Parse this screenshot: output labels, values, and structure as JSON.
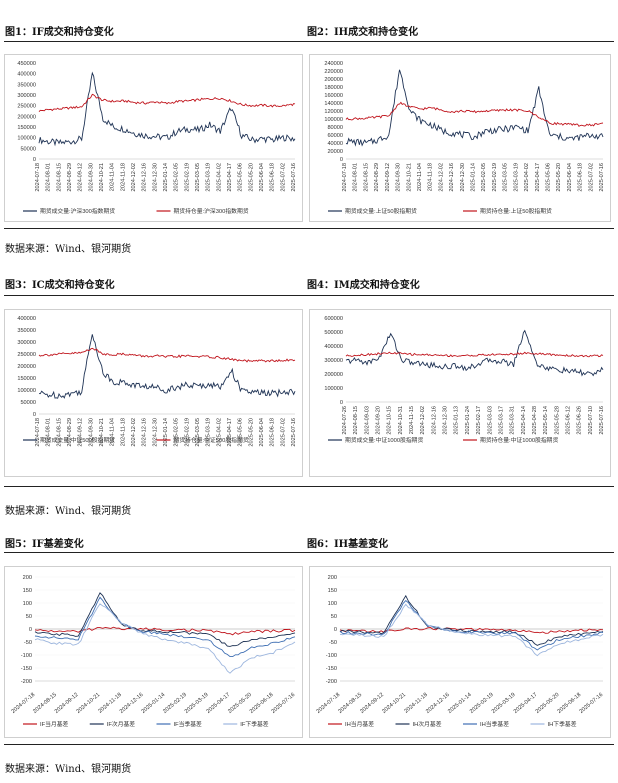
{
  "sources": [
    "数据来源：Wind、银河期货",
    "数据来源：Wind、银河期货",
    "数据来源：Wind、银河期货"
  ],
  "colors": {
    "navy": "#1f3355",
    "red": "#c0141c",
    "blue": "#3f6fb3",
    "lightblue": "#9db6de"
  },
  "chart_data": [
    {
      "id": "c1",
      "title": "图1：IF成交和持仓变化",
      "type": "line",
      "ylim": [
        0,
        450000
      ],
      "yticks": [
        0,
        50000,
        100000,
        150000,
        200000,
        250000,
        300000,
        350000,
        400000,
        450000
      ],
      "x": [
        "2024-07-18",
        "2024-08-01",
        "2024-08-15",
        "2024-08-29",
        "2024-09-12",
        "2024-09-30",
        "2024-10-21",
        "2024-11-04",
        "2024-11-18",
        "2024-12-02",
        "2024-12-16",
        "2024-12-30",
        "2025-01-14",
        "2025-02-05",
        "2025-02-19",
        "2025-03-05",
        "2025-03-19",
        "2025-04-02",
        "2025-04-17",
        "2025-05-06",
        "2025-05-20",
        "2025-06-04",
        "2025-06-18",
        "2025-07-02",
        "2025-07-16"
      ],
      "series": [
        {
          "name": "期货成交量:沪深300指数期货",
          "color": "#1f3355",
          "values": [
            90000,
            80000,
            75000,
            82000,
            95000,
            400000,
            190000,
            150000,
            140000,
            120000,
            110000,
            105000,
            100000,
            130000,
            140000,
            135000,
            160000,
            130000,
            240000,
            110000,
            90000,
            95000,
            90000,
            100000,
            95000
          ]
        },
        {
          "name": "期货持仓量:沪深300指数期货",
          "color": "#c0141c",
          "values": [
            225000,
            232000,
            235000,
            240000,
            245000,
            300000,
            275000,
            270000,
            272000,
            265000,
            262000,
            268000,
            260000,
            270000,
            272000,
            278000,
            282000,
            285000,
            272000,
            255000,
            250000,
            252000,
            248000,
            250000,
            258000
          ]
        }
      ]
    },
    {
      "id": "c2",
      "title": "图2：IH成交和持仓变化",
      "type": "line",
      "ylim": [
        0,
        240000
      ],
      "yticks": [
        0,
        20000,
        40000,
        60000,
        80000,
        100000,
        120000,
        140000,
        160000,
        180000,
        200000,
        220000,
        240000
      ],
      "x": [
        "2024-07-18",
        "2024-08-01",
        "2024-08-15",
        "2024-08-29",
        "2024-09-12",
        "2024-09-30",
        "2024-10-21",
        "2024-11-04",
        "2024-11-18",
        "2024-12-02",
        "2024-12-16",
        "2024-12-30",
        "2025-01-14",
        "2025-02-05",
        "2025-02-19",
        "2025-03-05",
        "2025-03-19",
        "2025-04-02",
        "2025-04-17",
        "2025-05-06",
        "2025-05-20",
        "2025-06-04",
        "2025-06-18",
        "2025-07-02",
        "2025-07-16"
      ],
      "series": [
        {
          "name": "期货成交量:上证50股指期货",
          "color": "#1f3355",
          "values": [
            45000,
            42000,
            40000,
            48000,
            60000,
            225000,
            120000,
            95000,
            85000,
            70000,
            65000,
            60000,
            55000,
            70000,
            72000,
            75000,
            80000,
            70000,
            175000,
            60000,
            55000,
            50000,
            55000,
            60000,
            55000
          ]
        },
        {
          "name": "期货持仓量:上证50股指期货",
          "color": "#c0141c",
          "values": [
            100000,
            101000,
            102000,
            105000,
            108000,
            140000,
            130000,
            125000,
            128000,
            122000,
            118000,
            120000,
            118000,
            120000,
            121000,
            123000,
            122000,
            120000,
            105000,
            90000,
            88000,
            86000,
            84000,
            85000,
            90000
          ]
        }
      ]
    },
    {
      "id": "c3",
      "title": "图3：IC成交和持仓变化",
      "type": "line",
      "ylim": [
        0,
        400000
      ],
      "yticks": [
        0,
        50000,
        100000,
        150000,
        200000,
        250000,
        300000,
        350000,
        400000
      ],
      "x": [
        "2024-07-18",
        "2024-08-01",
        "2024-08-15",
        "2024-08-29",
        "2024-09-12",
        "2024-09-30",
        "2024-10-21",
        "2024-11-04",
        "2024-11-18",
        "2024-12-02",
        "2024-12-16",
        "2024-12-30",
        "2025-01-14",
        "2025-02-05",
        "2025-02-19",
        "2025-03-05",
        "2025-03-19",
        "2025-04-02",
        "2025-04-17",
        "2025-05-06",
        "2025-05-20",
        "2025-06-04",
        "2025-06-18",
        "2025-07-02",
        "2025-07-16"
      ],
      "series": [
        {
          "name": "期货成交量:中证500股指期货",
          "color": "#1f3355",
          "values": [
            85000,
            80000,
            78000,
            85000,
            95000,
            340000,
            170000,
            135000,
            130000,
            120000,
            115000,
            110000,
            100000,
            115000,
            120000,
            115000,
            125000,
            110000,
            185000,
            95000,
            90000,
            88000,
            85000,
            90000,
            95000
          ]
        },
        {
          "name": "期货持仓量:中证500股指期货",
          "color": "#c0141c",
          "values": [
            245000,
            247000,
            250000,
            252000,
            255000,
            275000,
            250000,
            248000,
            250000,
            245000,
            240000,
            242000,
            238000,
            240000,
            242000,
            240000,
            238000,
            235000,
            228000,
            222000,
            220000,
            222000,
            221000,
            223000,
            225000
          ]
        }
      ]
    },
    {
      "id": "c4",
      "title": "图4：IM成交和持仓变化",
      "type": "line",
      "ylim": [
        0,
        600000
      ],
      "yticks": [
        0,
        100000,
        200000,
        300000,
        400000,
        500000,
        600000
      ],
      "x": [
        "2024-07-26",
        "2024-08-15",
        "2024-09-03",
        "2024-09-20",
        "2024-10-15",
        "2024-10-31",
        "2024-11-15",
        "2024-12-02",
        "2024-12-16",
        "2024-12-30",
        "2025-01-13",
        "2025-01-24",
        "2025-02-17",
        "2025-03-03",
        "2025-03-17",
        "2025-03-31",
        "2025-04-14",
        "2025-04-28",
        "2025-05-14",
        "2025-05-28",
        "2025-06-12",
        "2025-06-26",
        "2025-07-10",
        "2025-07-16"
      ],
      "series": [
        {
          "name": "期货成交量:中证1000股指期货",
          "color": "#1f3355",
          "values": [
            290000,
            300000,
            280000,
            320000,
            490000,
            300000,
            280000,
            270000,
            260000,
            250000,
            260000,
            240000,
            280000,
            300000,
            290000,
            270000,
            520000,
            280000,
            240000,
            230000,
            220000,
            210000,
            200000,
            230000
          ]
        },
        {
          "name": "期货持仓量:中证1000股指期货",
          "color": "#c0141c",
          "values": [
            330000,
            335000,
            340000,
            345000,
            350000,
            345000,
            340000,
            338000,
            335000,
            332000,
            330000,
            332000,
            335000,
            338000,
            340000,
            342000,
            350000,
            345000,
            340000,
            335000,
            332000,
            330000,
            328000,
            332000
          ]
        }
      ]
    },
    {
      "id": "c5",
      "title": "图5：IF基差变化",
      "type": "line",
      "ylim": [
        -200,
        200
      ],
      "yticks": [
        200,
        150,
        100,
        50,
        0,
        -50,
        -100,
        -150,
        -200
      ],
      "x": [
        "2024-07-18",
        "2024-08-15",
        "2024-09-12",
        "2024-10-21",
        "2024-11-18",
        "2024-12-16",
        "2025-01-14",
        "2025-02-19",
        "2025-03-19",
        "2025-04-17",
        "2025-05-20",
        "2025-06-18",
        "2025-07-16"
      ],
      "series": [
        {
          "name": "IF当月基差",
          "color": "#c0141c",
          "values": [
            -5,
            -8,
            -10,
            5,
            2,
            0,
            -2,
            -4,
            -6,
            -20,
            -10,
            -8,
            -5
          ]
        },
        {
          "name": "IF次月基差",
          "color": "#1f3355",
          "values": [
            -15,
            -20,
            -25,
            140,
            15,
            -5,
            -10,
            -15,
            -20,
            -70,
            -40,
            -30,
            -15
          ]
        },
        {
          "name": "IF当季基差",
          "color": "#3f6fb3",
          "values": [
            -25,
            -35,
            -40,
            120,
            20,
            -10,
            -20,
            -30,
            -40,
            -110,
            -70,
            -55,
            -30
          ]
        },
        {
          "name": "IF下季基差",
          "color": "#9db6de",
          "values": [
            -40,
            -55,
            -60,
            100,
            25,
            -20,
            -40,
            -55,
            -75,
            -170,
            -110,
            -90,
            -50
          ]
        }
      ]
    },
    {
      "id": "c6",
      "title": "图6：IH基差变化",
      "type": "line",
      "ylim": [
        -200,
        200
      ],
      "yticks": [
        200,
        150,
        100,
        50,
        0,
        -50,
        -100,
        -150,
        -200
      ],
      "x": [
        "2024-07-18",
        "2024-08-15",
        "2024-09-12",
        "2024-10-21",
        "2024-11-18",
        "2024-12-16",
        "2025-01-14",
        "2025-02-19",
        "2025-03-19",
        "2025-04-17",
        "2025-05-20",
        "2025-06-18",
        "2025-07-16"
      ],
      "series": [
        {
          "name": "IH当月基差",
          "color": "#c0141c",
          "values": [
            -5,
            -8,
            -10,
            0,
            2,
            0,
            -2,
            -3,
            -5,
            -15,
            -8,
            -5,
            -3
          ]
        },
        {
          "name": "IH次月基差",
          "color": "#1f3355",
          "values": [
            -8,
            -12,
            -15,
            125,
            10,
            -3,
            -8,
            -10,
            -12,
            -60,
            -30,
            -20,
            -10
          ]
        },
        {
          "name": "IH当季基差",
          "color": "#3f6fb3",
          "values": [
            -12,
            -18,
            -22,
            110,
            15,
            -5,
            -12,
            -15,
            -18,
            -80,
            -40,
            -28,
            -14
          ]
        },
        {
          "name": "IH下季基差",
          "color": "#9db6de",
          "values": [
            -18,
            -25,
            -30,
            95,
            18,
            -10,
            -20,
            -25,
            -28,
            -100,
            -55,
            -40,
            -20
          ]
        }
      ]
    }
  ]
}
